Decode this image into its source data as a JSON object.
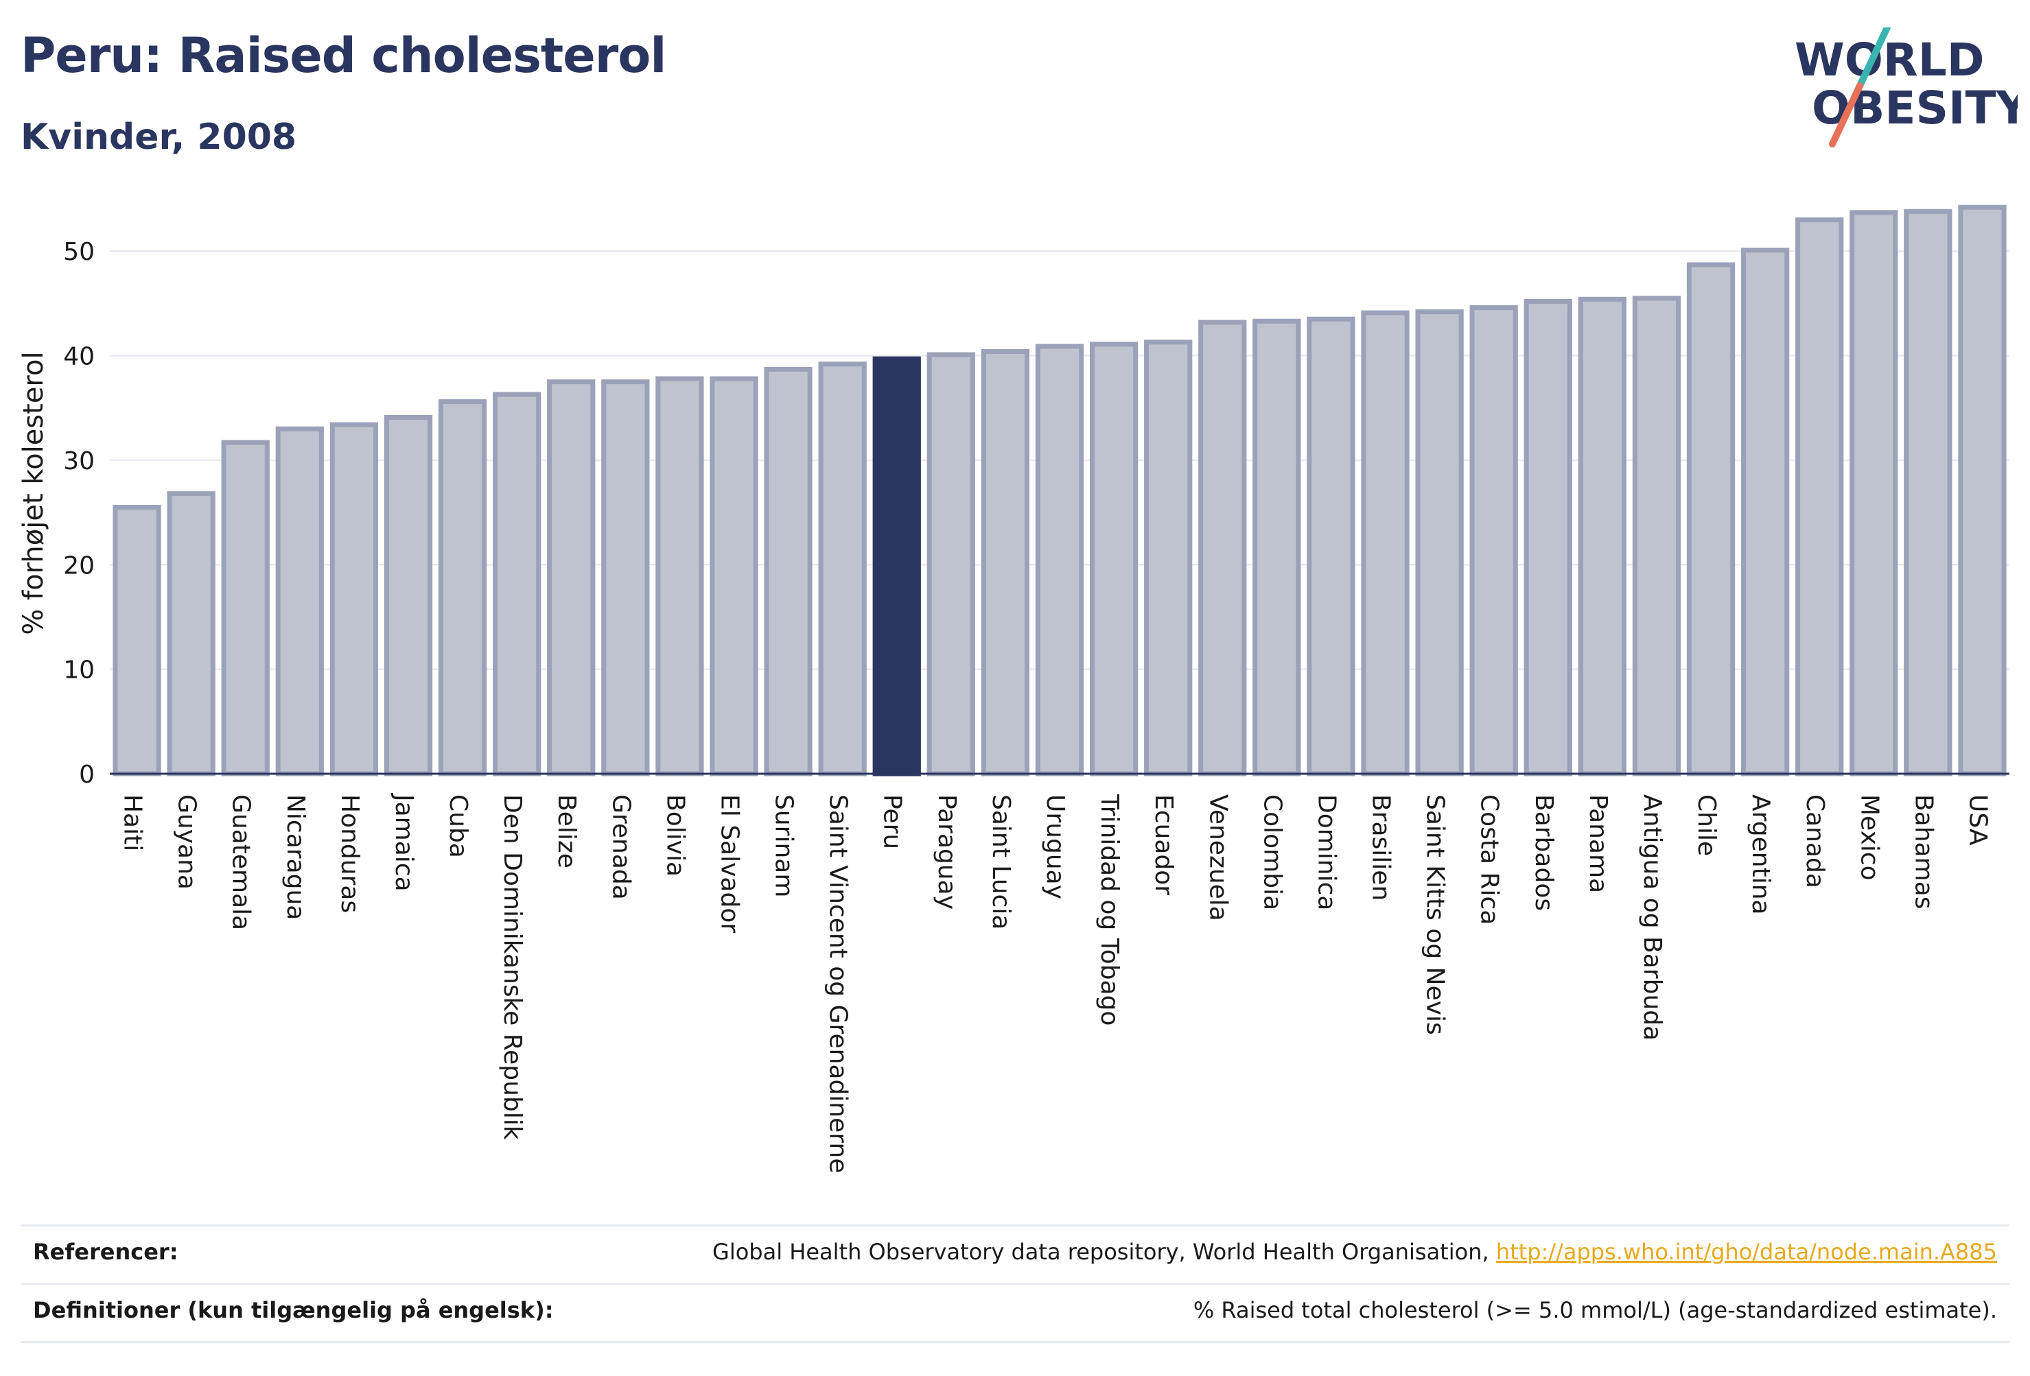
{
  "header": {
    "title": "Peru: Raised cholesterol",
    "subtitle": "Kvinder, 2008"
  },
  "logo": {
    "line1": "WORLD",
    "line2": "OBESITY",
    "colors": {
      "text": "#2a3560",
      "slash_top": "#3ab4b0",
      "slash_bottom": "#e8715a"
    }
  },
  "chart_data": {
    "type": "bar",
    "ylabel": "% forhøjet kolesterol",
    "xlabel": "",
    "ylim": [
      0,
      55
    ],
    "yticks": [
      0,
      10,
      20,
      30,
      40,
      50
    ],
    "grid": true,
    "highlight": "Peru",
    "colors": {
      "bar": "#bfc2cf",
      "bar_border": "#9ba1b8",
      "highlight": "#2a3560"
    },
    "categories": [
      "Haiti",
      "Guyana",
      "Guatemala",
      "Nicaragua",
      "Honduras",
      "Jamaica",
      "Cuba",
      "Den Dominikanske Republik",
      "Belize",
      "Grenada",
      "Bolivia",
      "El Salvador",
      "Surinam",
      "Saint Vincent og Grenadinerne",
      "Peru",
      "Paraguay",
      "Saint Lucia",
      "Uruguay",
      "Trinidad og Tobago",
      "Ecuador",
      "Venezuela",
      "Colombia",
      "Dominica",
      "Brasilien",
      "Saint Kitts og Nevis",
      "Costa Rica",
      "Barbados",
      "Panama",
      "Antigua og Barbuda",
      "Chile",
      "Argentina",
      "Canada",
      "Mexico",
      "Bahamas",
      "USA"
    ],
    "values": [
      25.5,
      26.8,
      31.7,
      33.0,
      33.4,
      34.1,
      35.6,
      36.3,
      37.5,
      37.5,
      37.8,
      37.8,
      38.7,
      39.2,
      39.7,
      40.1,
      40.4,
      40.9,
      41.1,
      41.3,
      43.2,
      43.3,
      43.5,
      44.1,
      44.2,
      44.6,
      45.2,
      45.4,
      45.5,
      48.7,
      50.1,
      53.0,
      53.7,
      53.8,
      54.2
    ]
  },
  "references": {
    "ref_label": "Referencer:",
    "ref_text": "Global Health Observatory data repository, World Health Organisation, ",
    "ref_link": "http://apps.who.int/gho/data/node.main.A885",
    "def_label": "Definitioner (kun tilgængelig på engelsk):",
    "def_text": "% Raised total cholesterol (>= 5.0 mmol/L) (age-standardized estimate)."
  }
}
